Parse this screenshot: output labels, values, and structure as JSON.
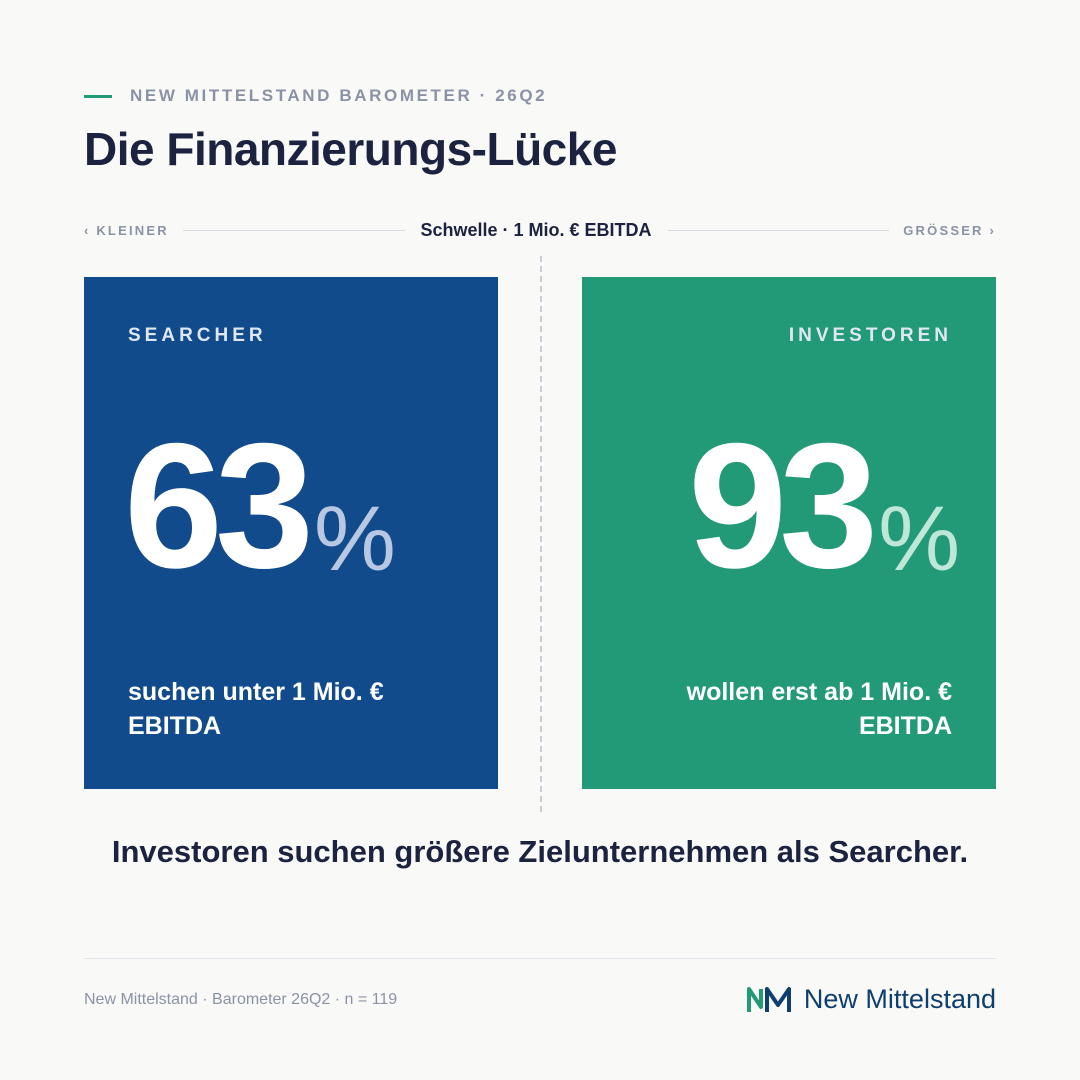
{
  "eyebrow": "NEW MITTELSTAND BAROMETER · 26Q2",
  "title": "Die Finanzierungs-Lücke",
  "scale": {
    "left": "‹ KLEINER",
    "center": "Schwelle · 1 Mio. € EBITDA",
    "right": "GRÖSSER ›"
  },
  "cards": [
    {
      "label": "SEARCHER",
      "value": "63",
      "unit": "%",
      "description": "suchen unter 1 Mio. € EBITDA",
      "color": "#124b8c"
    },
    {
      "label": "INVESTOREN",
      "value": "93",
      "unit": "%",
      "description": "wollen erst ab 1 Mio. € EBITDA",
      "color": "#229a78"
    }
  ],
  "conclusion": "Investoren suchen größere Zielunternehmen als Searcher.",
  "footer": {
    "source": "New Mittelstand · Barometer 26Q2 · n = 119",
    "brand_name": "New Mittelstand"
  },
  "colors": {
    "accent_green": "#229a78",
    "accent_blue": "#124b8c",
    "text_dark": "#1b2340",
    "text_muted": "#8a92a6"
  }
}
